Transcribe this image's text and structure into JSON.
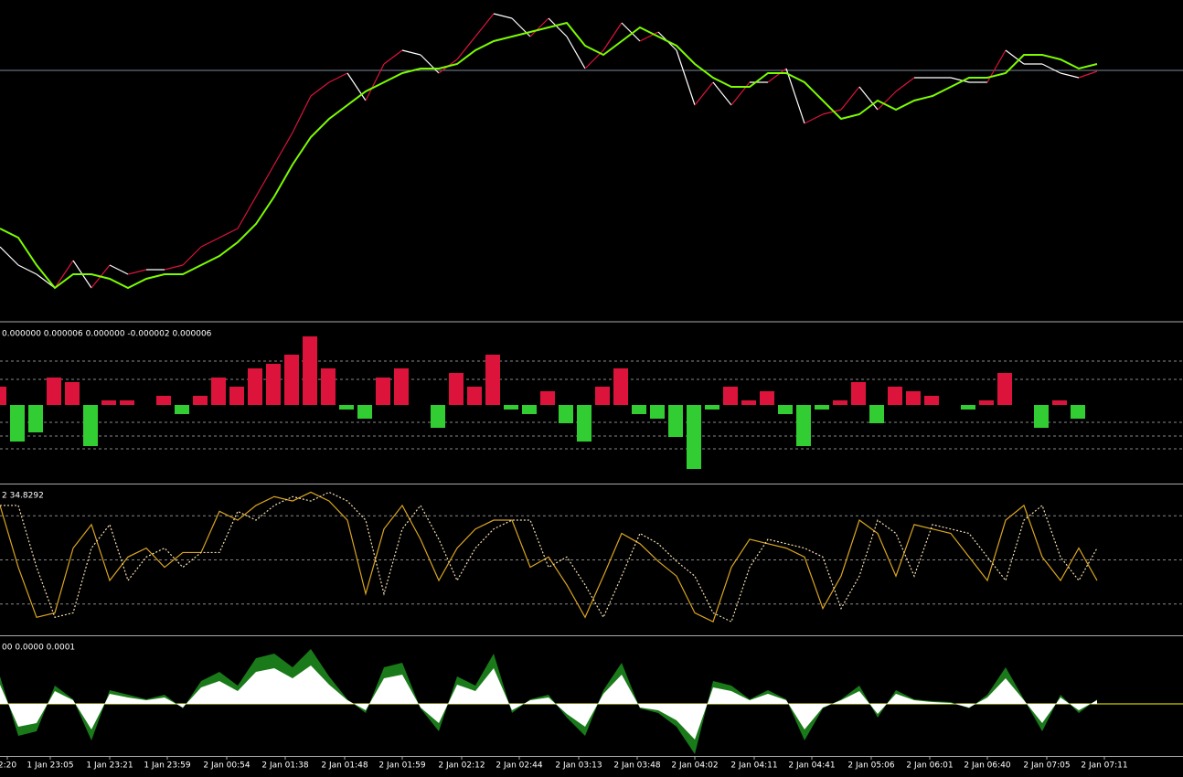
{
  "chart_data": [
    {
      "type": "line",
      "ylim": [
        0,
        350
      ],
      "levels": [
        273
      ],
      "level_color": "#778899",
      "series": [
        {
          "color": "#ffffff",
          "up_color": "#dc143c",
          "values": [
            80,
            60,
            50,
            35,
            65,
            35,
            60,
            50,
            55,
            55,
            60,
            80,
            90,
            100,
            135,
            170,
            205,
            245,
            260,
            270,
            240,
            280,
            295,
            290,
            270,
            285,
            310,
            335,
            330,
            310,
            330,
            310,
            275,
            295,
            325,
            305,
            315,
            295,
            235,
            260,
            235,
            260,
            260,
            275,
            215,
            225,
            230,
            255,
            230,
            250,
            265,
            265,
            265,
            260,
            260,
            295,
            280,
            280,
            270,
            265,
            272
          ]
        },
        {
          "color": "#7cfc00",
          "values": [
            100,
            90,
            60,
            35,
            50,
            50,
            45,
            35,
            45,
            50,
            50,
            60,
            70,
            85,
            105,
            135,
            170,
            200,
            220,
            235,
            250,
            260,
            270,
            275,
            275,
            280,
            295,
            305,
            310,
            315,
            320,
            325,
            300,
            290,
            305,
            320,
            310,
            300,
            280,
            265,
            255,
            255,
            270,
            270,
            260,
            240,
            220,
            225,
            240,
            230,
            240,
            245,
            255,
            265,
            265,
            270,
            290,
            290,
            285,
            275,
            280
          ]
        }
      ]
    },
    {
      "type": "bar",
      "label": "0.000000 0.000006 0.000000 -0.000002 0.000006",
      "ylim": [
        -84,
        88
      ],
      "levels": [
        48,
        28,
        -19,
        -34,
        -48
      ],
      "level_color": "#888888",
      "series": [
        {
          "color": "#dc143c",
          "negative_color": "#32cd32",
          "values": [
            20,
            -40,
            -30,
            30,
            25,
            -45,
            5,
            5,
            0,
            10,
            -10,
            10,
            30,
            20,
            40,
            45,
            55,
            75,
            40,
            -5,
            -15,
            30,
            40,
            0,
            -25,
            35,
            20,
            55,
            -5,
            -10,
            15,
            -20,
            -40,
            20,
            40,
            -10,
            -15,
            -35,
            -70,
            -5,
            20,
            5,
            15,
            -10,
            -45,
            -5,
            5,
            25,
            -20,
            20,
            15,
            10,
            0,
            -5,
            5,
            35,
            0,
            -25,
            5,
            -15,
            0
          ]
        }
      ]
    },
    {
      "type": "line",
      "label": "2 34.8292",
      "ylim": [
        0,
        100
      ],
      "levels": [
        80,
        50,
        20
      ],
      "level_color": "#888888",
      "series": [
        {
          "color": "#daa520",
          "values": [
            87,
            45,
            11,
            14,
            58,
            74,
            36,
            52,
            58,
            45,
            55,
            55,
            83,
            77,
            87,
            93,
            90,
            96,
            90,
            77,
            27,
            71,
            87,
            64,
            36,
            58,
            71,
            77,
            77,
            45,
            52,
            33,
            11,
            39,
            68,
            61,
            49,
            39,
            14,
            8,
            45,
            64,
            61,
            58,
            52,
            17,
            39,
            77,
            68,
            39,
            74,
            71,
            68,
            52,
            36,
            77,
            87,
            52,
            36,
            58,
            36
          ]
        },
        {
          "color": "#f5deb3",
          "dashed": true,
          "values": [
            87,
            87,
            45,
            11,
            14,
            58,
            74,
            36,
            52,
            58,
            45,
            55,
            55,
            83,
            77,
            87,
            93,
            90,
            96,
            90,
            77,
            27,
            71,
            87,
            64,
            36,
            58,
            71,
            77,
            77,
            45,
            52,
            33,
            11,
            39,
            68,
            61,
            49,
            39,
            14,
            8,
            45,
            64,
            61,
            58,
            52,
            17,
            39,
            77,
            68,
            39,
            74,
            71,
            68,
            52,
            36,
            77,
            87,
            52,
            36,
            58
          ]
        }
      ]
    },
    {
      "type": "area",
      "label": "00 0.0000 0.0001",
      "ylim": [
        -56,
        72
      ],
      "levels": [
        0
      ],
      "level_color": "#ffff00",
      "series": [
        {
          "color": "#1a7a1a",
          "values": [
            30,
            -35,
            -30,
            20,
            5,
            -40,
            15,
            10,
            5,
            10,
            -5,
            25,
            35,
            20,
            50,
            55,
            40,
            60,
            30,
            5,
            -10,
            40,
            45,
            -5,
            -30,
            30,
            20,
            55,
            -10,
            5,
            10,
            -15,
            -35,
            15,
            45,
            -5,
            -10,
            -25,
            -55,
            25,
            20,
            5,
            15,
            5,
            -40,
            -5,
            5,
            20,
            -15,
            15,
            5,
            3,
            2,
            -5,
            10,
            40,
            5,
            -30,
            10,
            -10,
            5
          ]
        },
        {
          "color": "#ffffff",
          "values": [
            21,
            -25,
            -21,
            14,
            4,
            -28,
            11,
            7,
            4,
            7,
            -4,
            18,
            25,
            14,
            35,
            39,
            28,
            42,
            21,
            4,
            -7,
            28,
            32,
            -4,
            -21,
            21,
            14,
            39,
            -7,
            4,
            7,
            -11,
            -25,
            11,
            32,
            -4,
            -7,
            -18,
            -39,
            18,
            14,
            4,
            11,
            4,
            -28,
            -4,
            4,
            14,
            -11,
            11,
            4,
            2,
            1,
            -4,
            7,
            28,
            4,
            -21,
            7,
            -7,
            4
          ]
        }
      ],
      "xlim": [
        0,
        64.7
      ],
      "xticks": [
        {
          "value": 0.4,
          "label": "2:20"
        },
        {
          "value": 2.75,
          "label": "1 Jan 23:05"
        },
        {
          "value": 6,
          "label": "1 Jan 23:21"
        },
        {
          "value": 9.15,
          "label": "1 Jan 23:59"
        },
        {
          "value": 12.4,
          "label": "2 Jan 00:54"
        },
        {
          "value": 15.6,
          "label": "2 Jan 01:38"
        },
        {
          "value": 18.85,
          "label": "2 Jan 01:48"
        },
        {
          "value": 22,
          "label": "2 Jan 01:59"
        },
        {
          "value": 25.25,
          "label": "2 Jan 02:12"
        },
        {
          "value": 28.4,
          "label": "2 Jan 02:44"
        },
        {
          "value": 31.65,
          "label": "2 Jan 03:13"
        },
        {
          "value": 34.85,
          "label": "2 Jan 03:48"
        },
        {
          "value": 38,
          "label": "2 Jan 04:02"
        },
        {
          "value": 41.25,
          "label": "2 Jan 04:11"
        },
        {
          "value": 44.4,
          "label": "2 Jan 04:41"
        },
        {
          "value": 47.65,
          "label": "2 Jan 05:06"
        },
        {
          "value": 50.85,
          "label": "2 Jan 06:01"
        },
        {
          "value": 54,
          "label": "2 Jan 06:40"
        },
        {
          "value": 57.25,
          "label": "2 Jan 07:05"
        },
        {
          "value": 60.4,
          "label": "2 Jan 07:11"
        }
      ]
    }
  ]
}
